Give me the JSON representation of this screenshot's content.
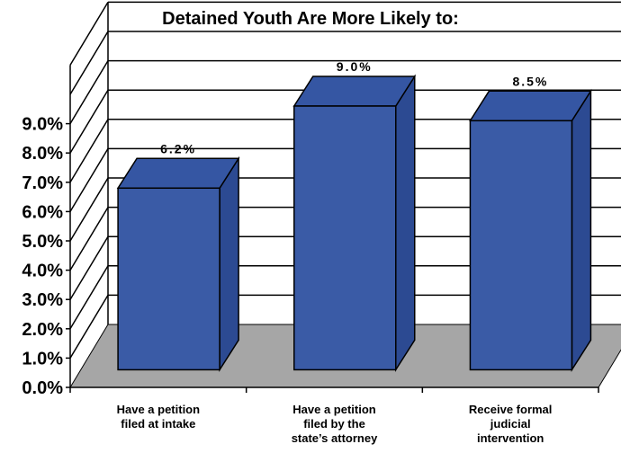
{
  "chart_data": {
    "type": "bar",
    "title": "Detained Youth Are More Likely to:",
    "categories": [
      [
        "Have a petition",
        "filed at intake"
      ],
      [
        "Have a petition",
        "filed by the",
        "state’s attorney"
      ],
      [
        "Receive formal",
        "judicial",
        "intervention"
      ]
    ],
    "values": [
      6.2,
      9.0,
      8.5
    ],
    "data_labels": [
      "6.2%",
      "9.0%",
      "8.5%"
    ],
    "y_ticks": [
      0,
      1,
      2,
      3,
      4,
      5,
      6,
      7,
      8,
      9
    ],
    "y_tick_labels": [
      "0.0%",
      "1.0%",
      "2.0%",
      "3.0%",
      "4.0%",
      "5.0%",
      "6.0%",
      "7.0%",
      "8.0%",
      "9.0%"
    ],
    "ylim": [
      0,
      11
    ],
    "grid": true,
    "style": "3d",
    "colors": {
      "bar_front": "#3a5ba6",
      "bar_top": "#3556a3",
      "bar_side": "#2c4a92",
      "floor": "#a6a6a6",
      "grid": "#000000"
    }
  }
}
